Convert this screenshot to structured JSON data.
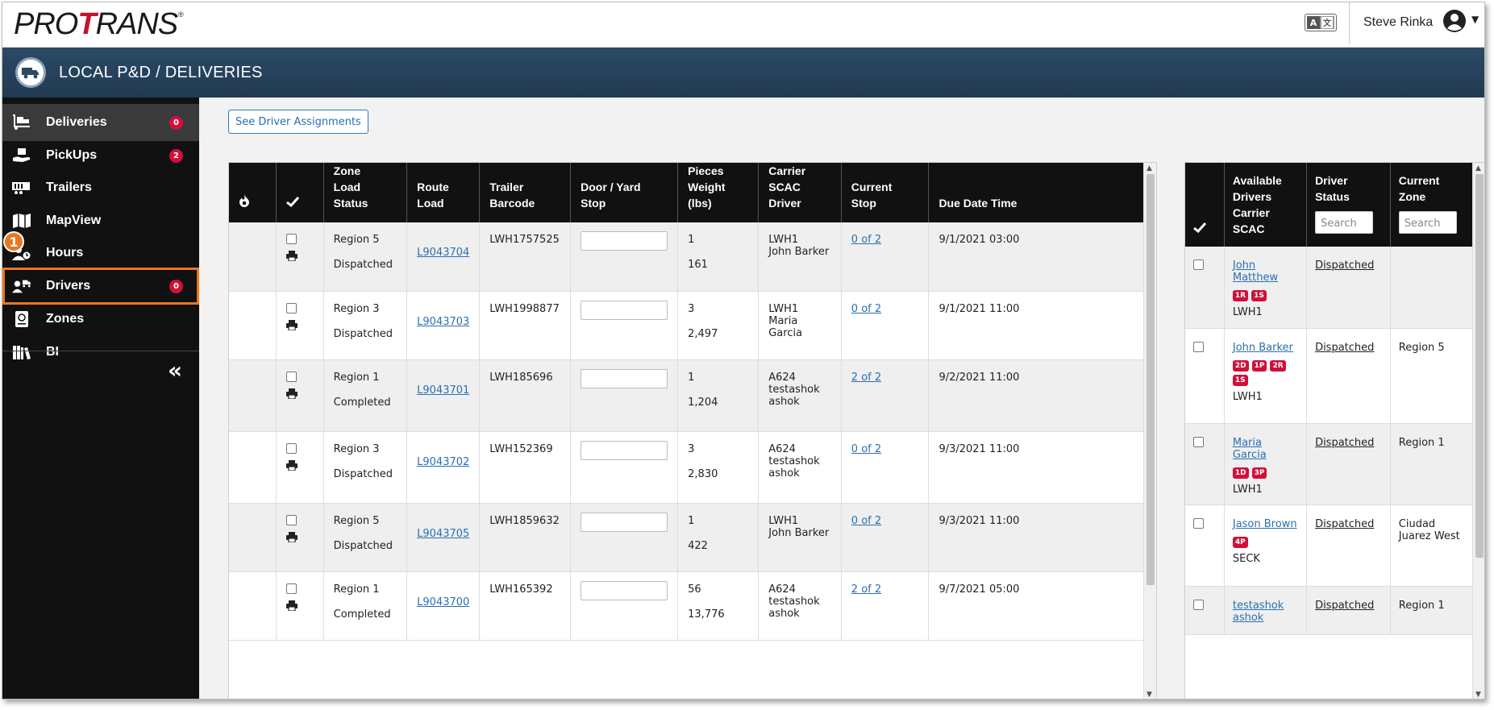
{
  "app": {
    "logo_text": "PROTRANS",
    "user_name": "Steve Rinka",
    "page_title": "LOCAL P&D / DELIVERIES"
  },
  "sidebar": {
    "items": [
      {
        "label": "Deliveries",
        "icon": "boxes-dolly-icon",
        "badge": "0"
      },
      {
        "label": "PickUps",
        "icon": "hand-box-icon",
        "badge": "2"
      },
      {
        "label": "Trailers",
        "icon": "trailer-icon"
      },
      {
        "label": "MapView",
        "icon": "map-icon"
      },
      {
        "label": "Hours",
        "icon": "user-clock-icon"
      },
      {
        "label": "Drivers",
        "icon": "user-truck-icon",
        "badge": "0"
      },
      {
        "label": "Zones",
        "icon": "passport-icon"
      },
      {
        "label": "BI",
        "icon": "books-icon"
      }
    ],
    "collapse_label": "«",
    "step_marker": "1"
  },
  "main": {
    "see_driver_assignments": "See Driver Assignments"
  },
  "deliveries_table": {
    "headers": {
      "zone": "Zone",
      "load_status": "Load Status",
      "route": "Route",
      "load": "Load",
      "trailer_barcode": "Trailer Barcode",
      "door_yard": "Door / Yard",
      "stop": "Stop",
      "pieces": "Pieces",
      "weight": "Weight (lbs)",
      "carrier_scac": "Carrier SCAC",
      "driver": "Driver",
      "current_stop": "Current Stop",
      "due_date_time": "Due Date Time"
    },
    "rows": [
      {
        "zone": "Region 5",
        "status": "Dispatched",
        "load": "L9043704",
        "trailer": "LWH1757525",
        "pieces": "1",
        "weight": "161",
        "scac": "LWH1",
        "driver": "John Barker",
        "stop": "0 of 2",
        "due": "9/1/2021 03:00"
      },
      {
        "zone": "Region 3",
        "status": "Dispatched",
        "load": "L9043703",
        "trailer": "LWH1998877",
        "pieces": "3",
        "weight": "2,497",
        "scac": "LWH1",
        "driver": "Maria Garcia",
        "stop": "0 of 2",
        "due": "9/1/2021 11:00"
      },
      {
        "zone": "Region 1",
        "status": "Completed",
        "load": "L9043701",
        "trailer": "LWH185696",
        "pieces": "1",
        "weight": "1,204",
        "scac": "A624",
        "driver": "testashok ashok",
        "stop": "2 of 2",
        "due": "9/2/2021 11:00"
      },
      {
        "zone": "Region 3",
        "status": "Dispatched",
        "load": "L9043702",
        "trailer": "LWH152369",
        "pieces": "3",
        "weight": "2,830",
        "scac": "A624",
        "driver": "testashok ashok",
        "stop": "0 of 2",
        "due": "9/3/2021 11:00"
      },
      {
        "zone": "Region 5",
        "status": "Dispatched",
        "load": "L9043705",
        "trailer": "LWH1859632",
        "pieces": "1",
        "weight": "422",
        "scac": "LWH1",
        "driver": "John Barker",
        "stop": "0 of 2",
        "due": "9/3/2021 11:00"
      },
      {
        "zone": "Region 1",
        "status": "Completed",
        "load": "L9043700",
        "trailer": "LWH165392",
        "pieces": "56",
        "weight": "13,776",
        "scac": "A624",
        "driver": "testashok ashok",
        "stop": "2 of 2",
        "due": "9/7/2021 05:00"
      }
    ]
  },
  "drivers_table": {
    "headers": {
      "available_drivers": "Available Drivers",
      "carrier_scac": "Carrier SCAC",
      "driver_status": "Driver Status",
      "current_zone": "Current Zone",
      "search_placeholder": "Search"
    },
    "rows": [
      {
        "name": "John Matthew",
        "badges": [
          "1R",
          "1S"
        ],
        "scac": "LWH1",
        "status": "Dispatched",
        "zone": ""
      },
      {
        "name": "John Barker",
        "badges": [
          "2D",
          "1P",
          "2R",
          "1S"
        ],
        "scac": "LWH1",
        "status": "Dispatched",
        "zone": "Region 5"
      },
      {
        "name": "Maria Garcia",
        "badges": [
          "1D",
          "3P"
        ],
        "scac": "LWH1",
        "status": "Dispatched",
        "zone": "Region 1"
      },
      {
        "name": "Jason Brown",
        "badges": [
          "4P"
        ],
        "scac": "SECK",
        "status": "Dispatched",
        "zone": "Ciudad Juarez West"
      },
      {
        "name": "testashok ashok",
        "badges": [],
        "scac": "",
        "status": "Dispatched",
        "zone": "Region 1"
      }
    ]
  },
  "colors": {
    "header_band": "#2b4a66",
    "sidebar": "#111111",
    "badge": "#d0103a",
    "highlight": "#e87722",
    "link": "#2a6fb0"
  }
}
